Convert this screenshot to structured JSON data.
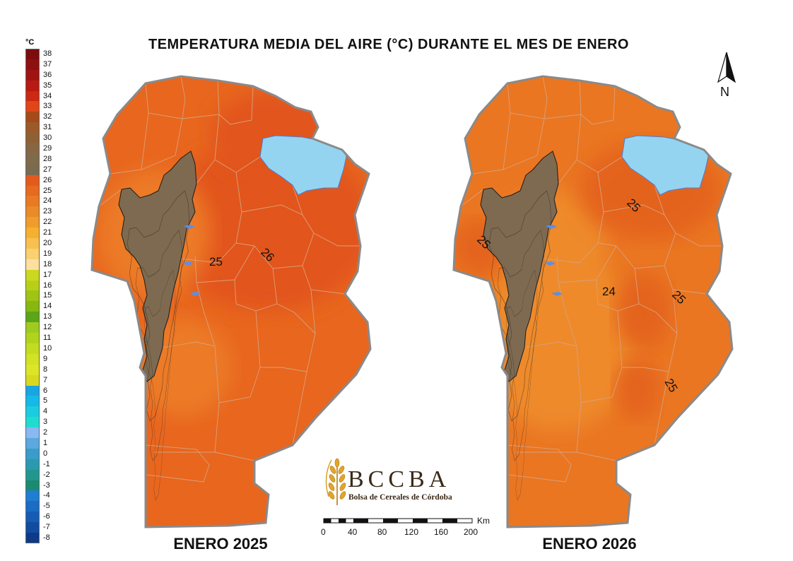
{
  "title": "TEMPERATURA MEDIA DEL AIRE (°C) DURANTE EL MES DE ENERO",
  "legend": {
    "unit": "°C",
    "entries": [
      {
        "label": "38",
        "color": "#7d0c0c"
      },
      {
        "label": "37",
        "color": "#8e1010"
      },
      {
        "label": "36",
        "color": "#a01414"
      },
      {
        "label": "35",
        "color": "#b81a12"
      },
      {
        "label": "34",
        "color": "#cc2812"
      },
      {
        "label": "33",
        "color": "#e0461a"
      },
      {
        "label": "32",
        "color": "#a64a1a"
      },
      {
        "label": "31",
        "color": "#9a5a2a"
      },
      {
        "label": "30",
        "color": "#8e6036"
      },
      {
        "label": "29",
        "color": "#886644"
      },
      {
        "label": "28",
        "color": "#7f6a4c"
      },
      {
        "label": "27",
        "color": "#7a6b50"
      },
      {
        "label": "26",
        "color": "#e45a1c"
      },
      {
        "label": "25",
        "color": "#e66a20"
      },
      {
        "label": "24",
        "color": "#e87a24"
      },
      {
        "label": "23",
        "color": "#ea8a28"
      },
      {
        "label": "22",
        "color": "#f09c2c"
      },
      {
        "label": "21",
        "color": "#f6b030"
      },
      {
        "label": "20",
        "color": "#f8c050"
      },
      {
        "label": "19",
        "color": "#fad070"
      },
      {
        "label": "18",
        "color": "#fce0a0"
      },
      {
        "label": "17",
        "color": "#cbd820"
      },
      {
        "label": "16",
        "color": "#b8cf18"
      },
      {
        "label": "15",
        "color": "#9fc414"
      },
      {
        "label": "14",
        "color": "#86b810"
      },
      {
        "label": "13",
        "color": "#5aa518"
      },
      {
        "label": "12",
        "color": "#9ecb1e"
      },
      {
        "label": "11",
        "color": "#b2d31e"
      },
      {
        "label": "10",
        "color": "#c4dc20"
      },
      {
        "label": "9",
        "color": "#d2e224"
      },
      {
        "label": "8",
        "color": "#dde626"
      },
      {
        "label": "7",
        "color": "#d8d820"
      },
      {
        "label": "6",
        "color": "#18a6e0"
      },
      {
        "label": "5",
        "color": "#16b8e8"
      },
      {
        "label": "4",
        "color": "#1acce0"
      },
      {
        "label": "3",
        "color": "#20dcd0"
      },
      {
        "label": "2",
        "color": "#8ab8f0"
      },
      {
        "label": "1",
        "color": "#5ca8e0"
      },
      {
        "label": "0",
        "color": "#3a9cc8"
      },
      {
        "label": "-1",
        "color": "#2a9ab0"
      },
      {
        "label": "-2",
        "color": "#22968c"
      },
      {
        "label": "-3",
        "color": "#1c8a6e"
      },
      {
        "label": "-4",
        "color": "#1e7ed0"
      },
      {
        "label": "-5",
        "color": "#1a6cc4"
      },
      {
        "label": "-6",
        "color": "#165cb4"
      },
      {
        "label": "-7",
        "color": "#124ca0"
      },
      {
        "label": "-8",
        "color": "#0e3a88"
      }
    ]
  },
  "maps": [
    {
      "caption": "ENERO 2025",
      "base_color": "#e8661e",
      "warm_color": "#e2551a",
      "cool_color": "#ec7a26",
      "isolines": [
        {
          "label": "26"
        },
        {
          "label": "25"
        }
      ]
    },
    {
      "caption": "ENERO 2026",
      "base_color": "#ea7622",
      "warm_color": "#e4641e",
      "cool_color": "#ee8a2c",
      "isolines": [
        {
          "label": "25"
        },
        {
          "label": "25"
        },
        {
          "label": "24"
        },
        {
          "label": "25"
        },
        {
          "label": "25"
        }
      ]
    }
  ],
  "colors": {
    "lake": "#94d4f0",
    "mountains": "#7e6a50",
    "boundary": "#d9a07a",
    "outline": "#8a8a8a"
  },
  "north": {
    "label": "N"
  },
  "logo": {
    "name": "BCCBA",
    "subtitle": "Bolsa de Cereales de Córdoba"
  },
  "scale": {
    "unit": "Km",
    "ticks": [
      "0",
      "40",
      "80",
      "120",
      "160",
      "200"
    ]
  }
}
